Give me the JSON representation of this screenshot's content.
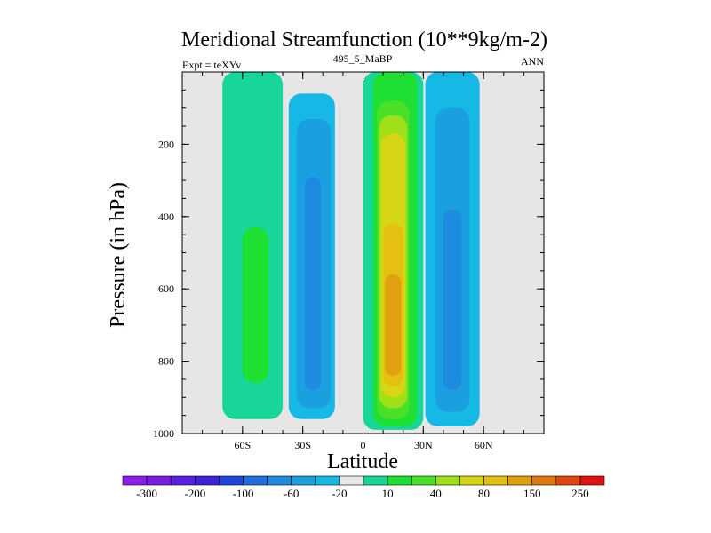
{
  "chart_data": {
    "type": "heatmap",
    "title": "Meridional Streamfunction (10**9kg/m-2)",
    "subtitle_left": "Expt = teXYv",
    "subtitle_center": "495_5_MaBP",
    "subtitle_right": "ANN",
    "xlabel": "Latitude",
    "ylabel": "Pressure (in hPa)",
    "x_ticks": [
      {
        "value": -60,
        "label": "60S"
      },
      {
        "value": -30,
        "label": "30S"
      },
      {
        "value": 0,
        "label": "0"
      },
      {
        "value": 30,
        "label": "30N"
      },
      {
        "value": 60,
        "label": "60N"
      }
    ],
    "y_ticks": [
      {
        "value": 200,
        "label": "200"
      },
      {
        "value": 400,
        "label": "400"
      },
      {
        "value": 600,
        "label": "600"
      },
      {
        "value": 800,
        "label": "800"
      },
      {
        "value": 1000,
        "label": "1000"
      }
    ],
    "xlim": [
      -90,
      90
    ],
    "ylim": [
      1000,
      0
    ],
    "background_color": "#e6e6e6",
    "colorbar": {
      "colors": [
        "#8a1de6",
        "#7a1de0",
        "#5a1ee0",
        "#3c22d6",
        "#2046d6",
        "#1f6ee0",
        "#1e8ae0",
        "#1aa0e0",
        "#16b8e6",
        "#e6e6e6",
        "#18d69a",
        "#1ee032",
        "#4ae028",
        "#a0e018",
        "#d6d616",
        "#e6c010",
        "#e0a010",
        "#e07810",
        "#e04810",
        "#e01010"
      ],
      "labels": [
        "-300",
        "-200",
        "-100",
        "-60",
        "-20",
        "10",
        "40",
        "80",
        "150",
        "250"
      ],
      "label_boundary_index": [
        1,
        3,
        5,
        7,
        9,
        11,
        13,
        15,
        17,
        19
      ]
    },
    "contour_regions": [
      {
        "name": "sh-positive-outer",
        "color": "#18d69a",
        "x_range": [
          -70,
          -40
        ],
        "p_range": [
          0,
          960
        ]
      },
      {
        "name": "sh-positive-inner",
        "color": "#1ee032",
        "x_range": [
          -60,
          -47
        ],
        "p_range": [
          430,
          860
        ]
      },
      {
        "name": "sh-negative-outer",
        "color": "#16b8e6",
        "x_range": [
          -37,
          -14
        ],
        "p_range": [
          60,
          960
        ]
      },
      {
        "name": "sh-negative-mid",
        "color": "#1aa0e0",
        "x_range": [
          -33,
          -16
        ],
        "p_range": [
          130,
          930
        ]
      },
      {
        "name": "sh-negative-inner",
        "color": "#1e8ae0",
        "x_range": [
          -29,
          -21
        ],
        "p_range": [
          290,
          880
        ]
      },
      {
        "name": "tropics-positive-outer",
        "color": "#18d69a",
        "x_range": [
          0,
          30
        ],
        "p_range": [
          0,
          990
        ]
      },
      {
        "name": "tropics-positive-2",
        "color": "#1ee032",
        "x_range": [
          5,
          27
        ],
        "p_range": [
          0,
          980
        ]
      },
      {
        "name": "tropics-positive-3",
        "color": "#4ae028",
        "x_range": [
          7,
          23
        ],
        "p_range": [
          80,
          960
        ]
      },
      {
        "name": "tropics-positive-4",
        "color": "#a0e018",
        "x_range": [
          8,
          22
        ],
        "p_range": [
          120,
          930
        ]
      },
      {
        "name": "tropics-positive-5",
        "color": "#d6d616",
        "x_range": [
          9,
          21
        ],
        "p_range": [
          170,
          900
        ]
      },
      {
        "name": "tropics-positive-6",
        "color": "#e6c010",
        "x_range": [
          10,
          20
        ],
        "p_range": [
          420,
          870
        ]
      },
      {
        "name": "tropics-positive-core",
        "color": "#e0a010",
        "x_range": [
          11,
          19
        ],
        "p_range": [
          560,
          840
        ]
      },
      {
        "name": "nh-negative-outer",
        "color": "#16b8e6",
        "x_range": [
          31,
          58
        ],
        "p_range": [
          0,
          980
        ]
      },
      {
        "name": "nh-negative-mid",
        "color": "#1aa0e0",
        "x_range": [
          36,
          53
        ],
        "p_range": [
          100,
          940
        ]
      },
      {
        "name": "nh-negative-inner",
        "color": "#1e8ae0",
        "x_range": [
          40,
          49
        ],
        "p_range": [
          380,
          880
        ]
      }
    ]
  }
}
